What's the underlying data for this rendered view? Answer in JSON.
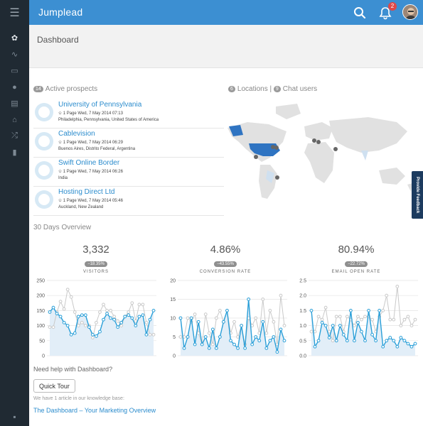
{
  "app": {
    "title": "Jumplead",
    "notifications": "2"
  },
  "page": {
    "title": "Dashboard"
  },
  "prospects": {
    "count": "14",
    "heading": "Active prospects",
    "items": [
      {
        "name": "University of Pennsylvania",
        "meta": "1 Page Wed, 7 May 2014 07:13",
        "location": "Philadelphia, Pennsylvania, United States of America"
      },
      {
        "name": "Cablevision",
        "meta": "1 Page Wed, 7 May 2014 06:29",
        "location": "Buenos Aires, Distrito Federal, Argentina"
      },
      {
        "name": "Swift Online Border",
        "meta": "1 Page Wed, 7 May 2014 06:26",
        "location": "India"
      },
      {
        "name": "Hosting Direct Ltd",
        "meta": "1 Page Wed, 7 May 2014 05:46",
        "location": "Auckland, New Zealand"
      }
    ]
  },
  "map": {
    "locations_count": "6",
    "locations_label": "Locations",
    "separator": "|",
    "chat_count": "9",
    "chat_label": "Chat users",
    "highlight": "#2f74c2",
    "land": "#e1e1e1"
  },
  "feedback": "Provide Feedback",
  "overview": {
    "heading": "30 Days Overview",
    "stats": [
      {
        "value": "3,332",
        "delta": "−18.35%",
        "label": "VISITORS"
      },
      {
        "value": "4.86%",
        "delta": "−43.55%",
        "label": "CONVERSION RATE"
      },
      {
        "value": "80.94%",
        "delta": "−22.72%",
        "label": "EMAIL OPEN RATE"
      }
    ]
  },
  "chart_data": [
    {
      "type": "line",
      "ylim": [
        0,
        250
      ],
      "yticks": [
        "0",
        "50",
        "100",
        "150",
        "200",
        "250"
      ],
      "series": [
        {
          "values": [
            145,
            160,
            140,
            130,
            110,
            100,
            70,
            75,
            130,
            135,
            135,
            95,
            70,
            65,
            80,
            120,
            140,
            125,
            120,
            95,
            110,
            130,
            135,
            125,
            100,
            130,
            135,
            70,
            120,
            150
          ],
          "color": "#2a9fd8"
        },
        {
          "values": [
            95,
            95,
            145,
            180,
            155,
            220,
            195,
            145,
            100,
            110,
            100,
            100,
            60,
            110,
            145,
            170,
            150,
            150,
            130,
            115,
            100,
            130,
            145,
            175,
            115,
            170,
            170,
            110,
            70,
            70
          ],
          "color": "#c9c9c9"
        }
      ]
    },
    {
      "type": "line",
      "ylim": [
        0,
        20
      ],
      "yticks": [
        "0",
        "5",
        "10",
        "15",
        "20"
      ],
      "series": [
        {
          "values": [
            10,
            2,
            5,
            10,
            3,
            9,
            3,
            5,
            2,
            7,
            2,
            5,
            9,
            12,
            4,
            3,
            2,
            8,
            2,
            15,
            3,
            5,
            4,
            9,
            2,
            4,
            5,
            1,
            7,
            4
          ],
          "color": "#2a9fd8"
        },
        {
          "values": [
            5,
            5,
            10,
            9,
            11,
            6,
            3,
            11,
            6,
            3,
            10,
            12,
            9,
            12,
            6,
            9,
            5,
            8,
            3,
            10,
            8,
            10,
            6,
            15,
            6,
            12,
            9,
            3,
            16,
            8
          ],
          "color": "#c9c9c9"
        }
      ]
    },
    {
      "type": "line",
      "ylim": [
        0,
        2.5
      ],
      "yticks": [
        "0.0",
        "0.5",
        "1.0",
        "1.5",
        "2.0",
        "2.5"
      ],
      "series": [
        {
          "values": [
            1.5,
            0.3,
            0.5,
            1.1,
            1.0,
            0.6,
            1.0,
            0.5,
            1.0,
            0.7,
            0.5,
            1.5,
            0.5,
            1.1,
            0.8,
            0.5,
            1.5,
            0.7,
            0.5,
            1.5,
            0.3,
            0.5,
            0.6,
            0.5,
            0.3,
            0.6,
            0.5,
            0.4,
            0.3,
            0.4
          ],
          "color": "#2a9fd8"
        },
        {
          "values": [
            0.8,
            0.8,
            1.3,
            1.2,
            1.6,
            0.8,
            0.5,
            1.3,
            1.3,
            0.8,
            1.3,
            1.2,
            1.0,
            1.3,
            1.2,
            1.3,
            1.3,
            1.2,
            0.8,
            1.3,
            1.5,
            2.0,
            1.2,
            1.2,
            2.3,
            1.0,
            1.2,
            1.3,
            1.0,
            1.2
          ],
          "color": "#c9c9c9"
        }
      ]
    }
  ],
  "help": {
    "heading": "Need help with Dashboard?",
    "button": "Quick Tour",
    "kb_text": "We have 1 article in our knowledge base:",
    "kb_link": "The Dashboard – Your Marketing Overview"
  }
}
